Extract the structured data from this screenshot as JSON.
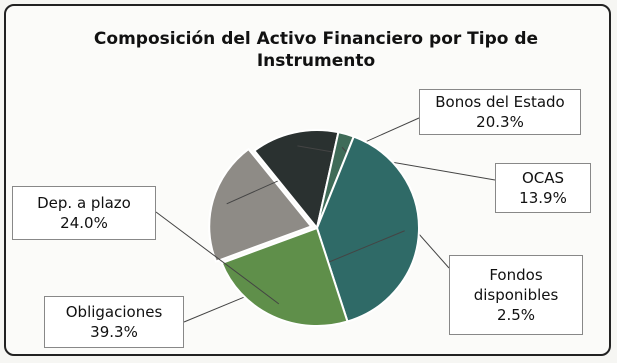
{
  "chart_data": {
    "type": "pie",
    "title": "Composición del Activo Financiero por Tipo de Instrumento",
    "slices": [
      {
        "label": "Bonos del Estado",
        "value": 20.3,
        "value_label": "20.3%",
        "color": "#8e8b86"
      },
      {
        "label": "OCAS",
        "value": 13.9,
        "value_label": "13.9%",
        "color": "#2a3130"
      },
      {
        "label": "Fondos disponibles",
        "value": 2.5,
        "value_label": "2.5%",
        "color": "#3f6b58"
      },
      {
        "label": "Obligaciones",
        "value": 39.3,
        "value_label": "39.3%",
        "color": "#2f6a67"
      },
      {
        "label": "Dep. a plazo",
        "value": 24.0,
        "value_label": "24.0%",
        "color": "#5f8f4a"
      }
    ]
  }
}
